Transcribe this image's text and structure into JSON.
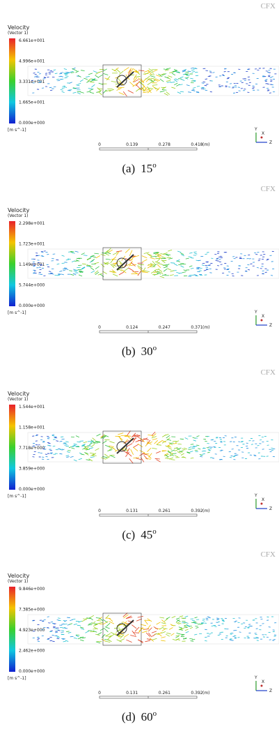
{
  "logo": "CFX",
  "title": "Velocity",
  "subtitle": "(Vector 1)",
  "unit": "[m s^-1]",
  "scale_unit": "(m)",
  "triad": [
    "Y",
    "X",
    "Z"
  ],
  "panels": [
    {
      "label": "(a)",
      "angle": "15",
      "degree": "o",
      "legend": [
        "6.661e+001",
        "4.996e+001",
        "3.331e+001",
        "1.665e+001",
        "0.000e+000"
      ],
      "scale": [
        "0",
        "0.139",
        "0.278",
        "0.418"
      ]
    },
    {
      "label": "(b)",
      "angle": "30",
      "degree": "o",
      "legend": [
        "2.298e+001",
        "1.723e+001",
        "1.149e+001",
        "5.744e+000",
        "0.000e+000"
      ],
      "scale": [
        "0",
        "0.124",
        "0.247",
        "0.371"
      ]
    },
    {
      "label": "(c)",
      "angle": "45",
      "degree": "o",
      "legend": [
        "1.544e+001",
        "1.158e+001",
        "7.718e+000",
        "3.859e+000",
        "0.000e+000"
      ],
      "scale": [
        "0",
        "0.131",
        "0.261",
        "0.392"
      ]
    },
    {
      "label": "(d)",
      "angle": "60",
      "degree": "o",
      "legend": [
        "9.846e+000",
        "7.385e+000",
        "4.923e+000",
        "2.462e+000",
        "0.000e+000"
      ],
      "scale": [
        "0",
        "0.131",
        "0.261",
        "0.392"
      ]
    }
  ]
}
